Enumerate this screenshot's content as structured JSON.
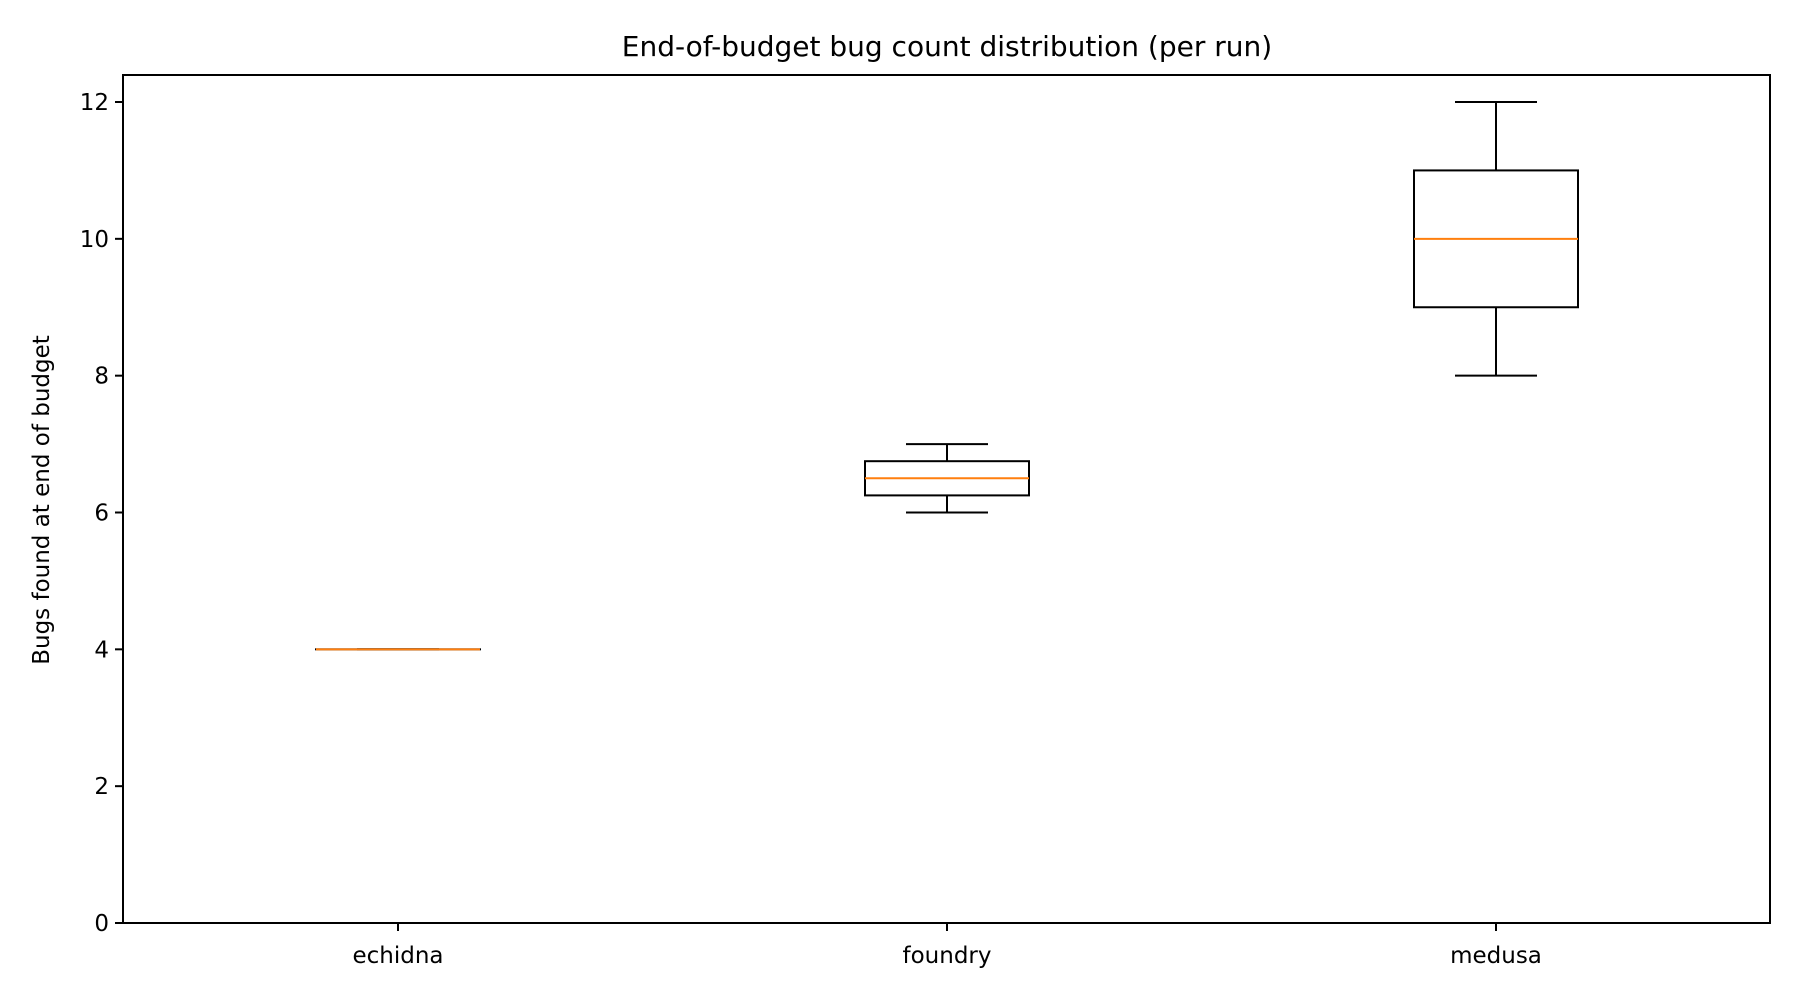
{
  "chart_data": {
    "type": "box",
    "title": "End-of-budget bug count distribution (per run)",
    "xlabel": "",
    "ylabel": "Bugs found at end of budget",
    "categories": [
      "echidna",
      "foundry",
      "medusa"
    ],
    "boxes": [
      {
        "name": "echidna",
        "whislo": 4,
        "q1": 4,
        "med": 4,
        "q3": 4,
        "whishi": 4
      },
      {
        "name": "foundry",
        "whislo": 6,
        "q1": 6.25,
        "med": 6.5,
        "q3": 6.75,
        "whishi": 7
      },
      {
        "name": "medusa",
        "whislo": 8,
        "q1": 9,
        "med": 10,
        "q3": 11,
        "whishi": 12
      }
    ],
    "ylim": [
      0,
      12.4
    ],
    "yticks": [
      0,
      2,
      4,
      6,
      8,
      10,
      12
    ],
    "grid": false,
    "legend": null,
    "colors": {
      "box": "#000000",
      "median": "#ff7f0e",
      "axes": "#000000"
    }
  }
}
